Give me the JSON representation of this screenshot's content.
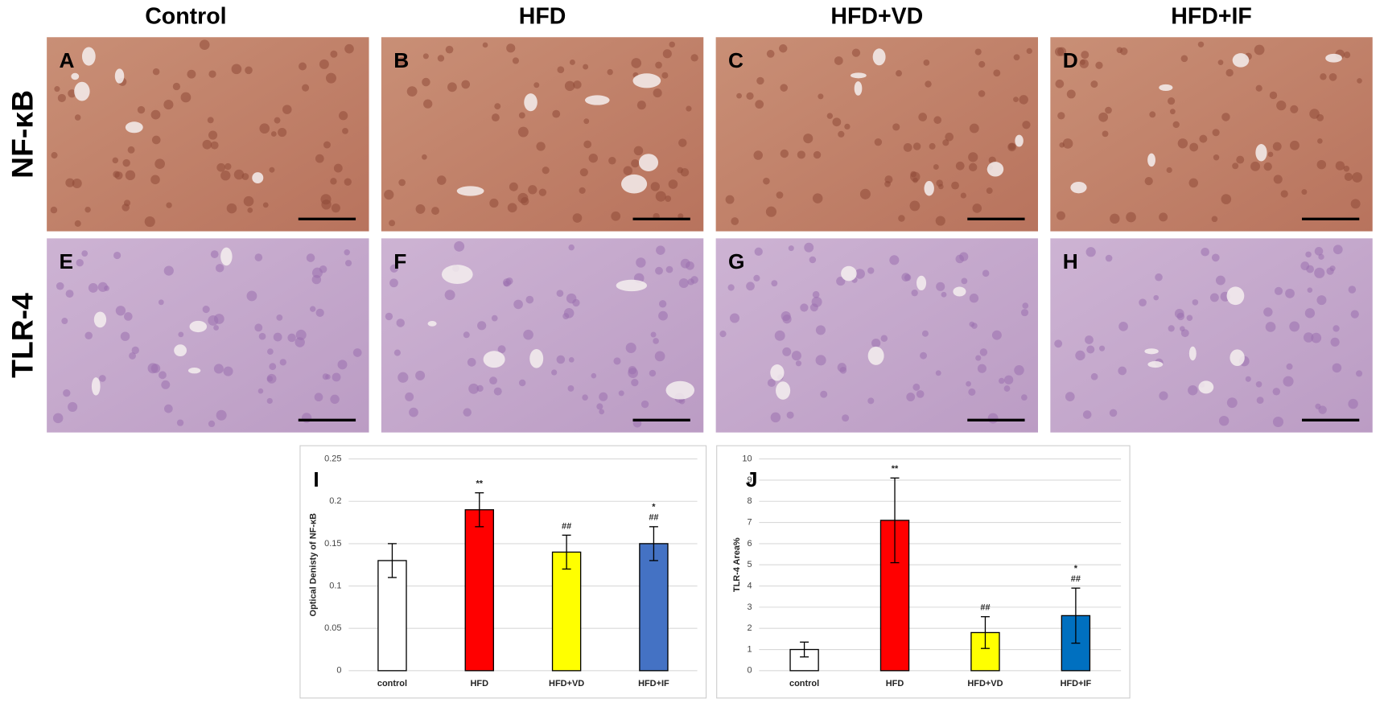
{
  "column_headers": [
    "Control",
    "HFD",
    "HFD+VD",
    "HFD+IF"
  ],
  "row_labels": [
    "NF-κB",
    "TLR-4"
  ],
  "panels": [
    "A",
    "B",
    "C",
    "D",
    "E",
    "F",
    "G",
    "H"
  ],
  "chart_data": [
    {
      "type": "bar",
      "panel_label": "I",
      "y_label": "Optical Denisty of NF-κB",
      "categories": [
        "control",
        "HFD",
        "HFD+VD",
        "HFD+IF"
      ],
      "values": [
        0.13,
        0.19,
        0.14,
        0.15
      ],
      "errors": [
        0.02,
        0.02,
        0.02,
        0.02
      ],
      "colors": [
        "#ffffff",
        "#ff0000",
        "#ffff00",
        "#4472c4"
      ],
      "ylim": [
        0,
        0.25
      ],
      "yticks": [
        0,
        0.05,
        0.1,
        0.15,
        0.2,
        0.25
      ],
      "grid": true,
      "annotations": [
        {
          "category": "HFD",
          "text": "**"
        },
        {
          "category": "HFD+VD",
          "text": "##"
        },
        {
          "category": "HFD+IF",
          "text": "##"
        },
        {
          "category": "HFD+IF",
          "text": "*"
        }
      ]
    },
    {
      "type": "bar",
      "panel_label": "J",
      "y_label": "TLR-4 Area%",
      "categories": [
        "control",
        "HFD",
        "HFD+VD",
        "HFD+IF"
      ],
      "values": [
        1,
        7.1,
        1.8,
        2.6
      ],
      "errors": [
        0.35,
        2,
        0.75,
        1.3
      ],
      "colors": [
        "#ffffff",
        "#ff0000",
        "#ffff00",
        "#0070c0"
      ],
      "ylim": [
        0,
        10
      ],
      "yticks": [
        0,
        1,
        2,
        3,
        4,
        5,
        6,
        7,
        8,
        9,
        10
      ],
      "grid": true,
      "annotations": [
        {
          "category": "HFD",
          "text": "**"
        },
        {
          "category": "HFD+VD",
          "text": "##"
        },
        {
          "category": "HFD+IF",
          "text": "##"
        },
        {
          "category": "HFD+IF",
          "text": "*"
        }
      ]
    }
  ]
}
